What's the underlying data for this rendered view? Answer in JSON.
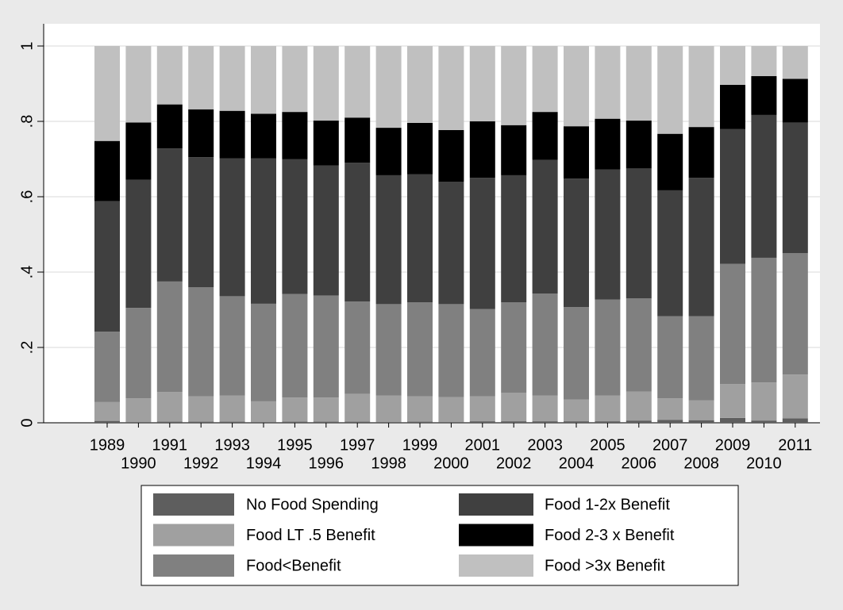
{
  "chart_data": {
    "type": "bar",
    "stacked": true,
    "categories": [
      "1989",
      "1990",
      "1991",
      "1992",
      "1993",
      "1994",
      "1995",
      "1996",
      "1997",
      "1998",
      "1999",
      "2000",
      "2001",
      "2002",
      "2003",
      "2004",
      "2005",
      "2006",
      "2007",
      "2008",
      "2009",
      "2010",
      "2011"
    ],
    "series": [
      {
        "name": "No Food Spending",
        "color": "#5e5e5e",
        "values": [
          0.005,
          0.002,
          0.003,
          0.003,
          0.003,
          0.002,
          0.003,
          0.003,
          0.003,
          0.002,
          0.003,
          0.002,
          0.004,
          0.004,
          0.004,
          0.004,
          0.004,
          0.006,
          0.008,
          0.007,
          0.013,
          0.006,
          0.012
        ]
      },
      {
        "name": "Food LT .5 Benefit",
        "color": "#a0a0a0",
        "values": [
          0.05,
          0.063,
          0.079,
          0.067,
          0.069,
          0.055,
          0.064,
          0.064,
          0.074,
          0.07,
          0.067,
          0.066,
          0.066,
          0.076,
          0.068,
          0.058,
          0.068,
          0.077,
          0.057,
          0.053,
          0.09,
          0.101,
          0.116
        ]
      },
      {
        "name": "Food<Benefit",
        "color": "#808080",
        "values": [
          0.187,
          0.24,
          0.293,
          0.29,
          0.264,
          0.259,
          0.275,
          0.271,
          0.245,
          0.243,
          0.25,
          0.247,
          0.232,
          0.24,
          0.271,
          0.245,
          0.255,
          0.247,
          0.218,
          0.223,
          0.319,
          0.331,
          0.322
        ]
      },
      {
        "name": "Food 1-2x Benefit",
        "color": "#404040",
        "values": [
          0.346,
          0.34,
          0.353,
          0.345,
          0.366,
          0.386,
          0.358,
          0.345,
          0.368,
          0.342,
          0.34,
          0.325,
          0.348,
          0.337,
          0.355,
          0.341,
          0.345,
          0.345,
          0.334,
          0.367,
          0.358,
          0.379,
          0.347
        ]
      },
      {
        "name": "Food 2-3 x Benefit",
        "color": "#000000",
        "values": [
          0.16,
          0.152,
          0.117,
          0.127,
          0.126,
          0.118,
          0.125,
          0.119,
          0.12,
          0.126,
          0.136,
          0.137,
          0.15,
          0.133,
          0.127,
          0.139,
          0.135,
          0.127,
          0.15,
          0.135,
          0.117,
          0.103,
          0.116
        ]
      },
      {
        "name": "Food >3x Benefit",
        "color": "#c0c0c0",
        "values": [
          0.252,
          0.203,
          0.155,
          0.168,
          0.172,
          0.18,
          0.175,
          0.198,
          0.19,
          0.217,
          0.204,
          0.223,
          0.2,
          0.21,
          0.175,
          0.213,
          0.193,
          0.198,
          0.233,
          0.215,
          0.103,
          0.08,
          0.087
        ]
      }
    ],
    "ylim": [
      0,
      1
    ],
    "yticks": [
      0,
      {
        "value": 0.2,
        "label": ".2"
      },
      {
        "value": 0.4,
        "label": ".4"
      },
      {
        "value": 0.6,
        "label": ".6"
      },
      {
        "value": 0.8,
        "label": ".8"
      },
      1
    ],
    "grid": true,
    "legend": "bottom"
  }
}
